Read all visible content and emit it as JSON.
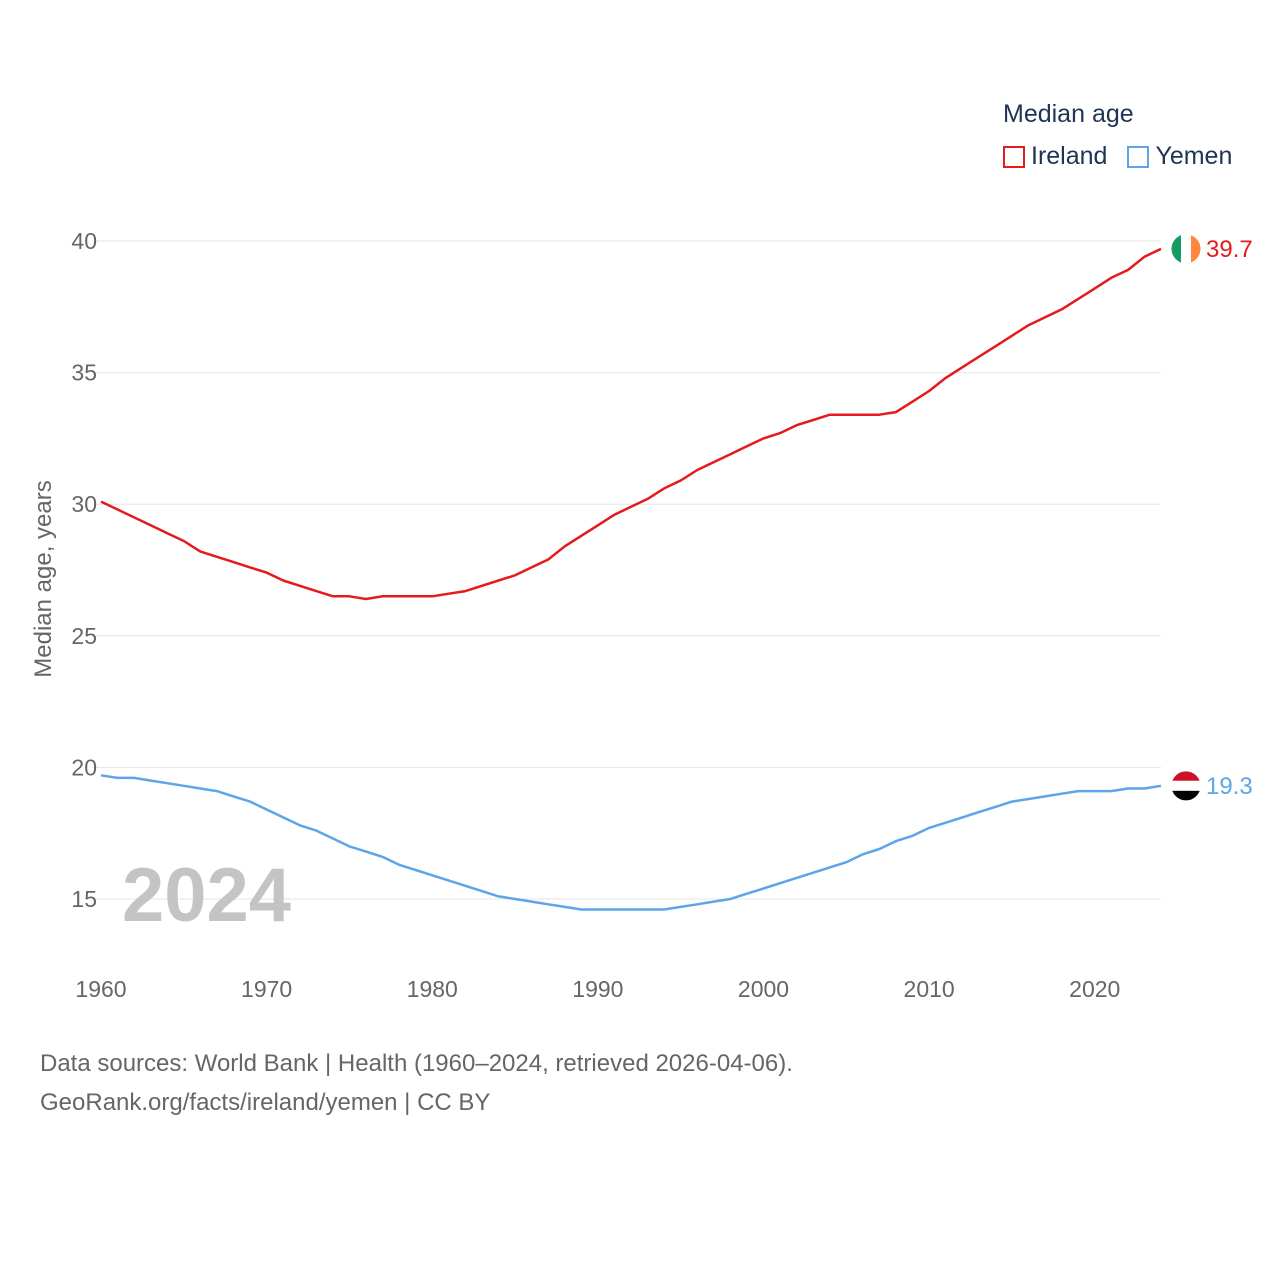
{
  "legend": {
    "title": "Median age",
    "entries": [
      {
        "name": "Ireland",
        "color": "#e41a1c"
      },
      {
        "name": "Yemen",
        "color": "#5da5e8"
      }
    ]
  },
  "footer": {
    "line1": "Data sources: World Bank | Health (1960–2024, retrieved 2026-04-06).",
    "line2": "GeoRank.org/facts/ireland/yemen | CC BY"
  },
  "watermark_year": "2024",
  "chart_data": {
    "type": "line",
    "title": "Median age",
    "xlabel": "",
    "ylabel": "Median age, years",
    "xlim": [
      1960,
      2024
    ],
    "ylim": [
      13,
      41
    ],
    "yticks": [
      15,
      20,
      25,
      30,
      35,
      40
    ],
    "xticks": [
      1960,
      1970,
      1980,
      1990,
      2000,
      2010,
      2020
    ],
    "grid": true,
    "legend_position": "top-right",
    "x": [
      1960,
      1961,
      1962,
      1963,
      1964,
      1965,
      1966,
      1967,
      1968,
      1969,
      1970,
      1971,
      1972,
      1973,
      1974,
      1975,
      1976,
      1977,
      1978,
      1979,
      1980,
      1981,
      1982,
      1983,
      1984,
      1985,
      1986,
      1987,
      1988,
      1989,
      1990,
      1991,
      1992,
      1993,
      1994,
      1995,
      1996,
      1997,
      1998,
      1999,
      2000,
      2001,
      2002,
      2003,
      2004,
      2005,
      2006,
      2007,
      2008,
      2009,
      2010,
      2011,
      2012,
      2013,
      2014,
      2015,
      2016,
      2017,
      2018,
      2019,
      2020,
      2021,
      2022,
      2023,
      2024
    ],
    "series": [
      {
        "name": "Ireland",
        "color": "#e41a1c",
        "flag": "ireland-flag",
        "end_label": "39.7",
        "values": [
          30.1,
          29.8,
          29.5,
          29.2,
          28.9,
          28.6,
          28.2,
          28.0,
          27.8,
          27.6,
          27.4,
          27.1,
          26.9,
          26.7,
          26.5,
          26.5,
          26.4,
          26.5,
          26.5,
          26.5,
          26.5,
          26.6,
          26.7,
          26.9,
          27.1,
          27.3,
          27.6,
          27.9,
          28.4,
          28.8,
          29.2,
          29.6,
          29.9,
          30.2,
          30.6,
          30.9,
          31.3,
          31.6,
          31.9,
          32.2,
          32.5,
          32.7,
          33.0,
          33.2,
          33.4,
          33.4,
          33.4,
          33.4,
          33.5,
          33.9,
          34.3,
          34.8,
          35.2,
          35.6,
          36.0,
          36.4,
          36.8,
          37.1,
          37.4,
          37.8,
          38.2,
          38.6,
          38.9,
          39.4,
          39.7
        ]
      },
      {
        "name": "Yemen",
        "color": "#5da5e8",
        "flag": "yemen-flag",
        "end_label": "19.3",
        "values": [
          19.7,
          19.6,
          19.6,
          19.5,
          19.4,
          19.3,
          19.2,
          19.1,
          18.9,
          18.7,
          18.4,
          18.1,
          17.8,
          17.6,
          17.3,
          17.0,
          16.8,
          16.6,
          16.3,
          16.1,
          15.9,
          15.7,
          15.5,
          15.3,
          15.1,
          15.0,
          14.9,
          14.8,
          14.7,
          14.6,
          14.6,
          14.6,
          14.6,
          14.6,
          14.6,
          14.7,
          14.8,
          14.9,
          15.0,
          15.2,
          15.4,
          15.6,
          15.8,
          16.0,
          16.2,
          16.4,
          16.7,
          16.9,
          17.2,
          17.4,
          17.7,
          17.9,
          18.1,
          18.3,
          18.5,
          18.7,
          18.8,
          18.9,
          19.0,
          19.1,
          19.1,
          19.1,
          19.2,
          19.2,
          19.3
        ]
      }
    ]
  }
}
